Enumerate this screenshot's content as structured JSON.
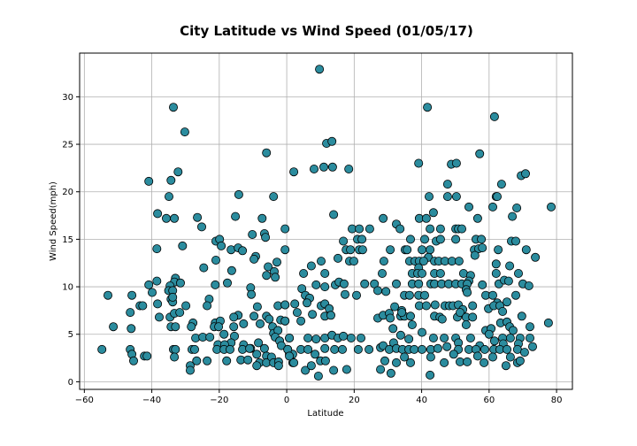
{
  "chart_data": {
    "type": "scatter",
    "title": "City Latitude vs Wind Speed (01/05/17)",
    "xlabel": "Latitude",
    "ylabel": "Wind Speed(mph)",
    "xlim": [
      -61.4,
      84.7
    ],
    "ylim": [
      -0.8,
      34.6
    ],
    "xticks": [
      -60,
      -40,
      -20,
      0,
      20,
      40,
      60,
      80
    ],
    "yticks": [
      0,
      5,
      10,
      15,
      20,
      25,
      30
    ],
    "xtick_labels": [
      "−60",
      "−40",
      "−20",
      "0",
      "20",
      "40",
      "60",
      "80"
    ],
    "ytick_labels": [
      "0",
      "5",
      "10",
      "15",
      "20",
      "25",
      "30"
    ],
    "grid": true,
    "marker_color": "#2b8c9e",
    "marker_edge_color": "#000000",
    "points": [
      [
        -33.6,
        28.9
      ],
      [
        -30.2,
        26.3
      ],
      [
        -6.0,
        24.1
      ],
      [
        -32.2,
        22.1
      ],
      [
        -40.9,
        21.1
      ],
      [
        -34.3,
        21.2
      ],
      [
        -34.9,
        19.5
      ],
      [
        -14.2,
        19.7
      ],
      [
        -3.9,
        19.5
      ],
      [
        -38.3,
        17.7
      ],
      [
        -35.7,
        17.2
      ],
      [
        -33.3,
        17.2
      ],
      [
        -26.5,
        17.3
      ],
      [
        -25.2,
        16.3
      ],
      [
        -15.2,
        17.4
      ],
      [
        -7.3,
        17.2
      ],
      [
        -0.5,
        16.1
      ],
      [
        -10.2,
        15.5
      ],
      [
        -6.6,
        15.6
      ],
      [
        -6.3,
        15.2
      ],
      [
        -30.9,
        14.3
      ],
      [
        -38.5,
        14.0
      ],
      [
        -21,
        14.8
      ],
      [
        -19.9,
        15
      ],
      [
        -19.4,
        14.3
      ],
      [
        -16.5,
        13.9
      ],
      [
        -14.4,
        14.1
      ],
      [
        -13.1,
        13.8
      ],
      [
        -9.2,
        13.2
      ],
      [
        -9.7,
        12.9
      ],
      [
        -0.5,
        13.9
      ],
      [
        -21,
        12.8
      ],
      [
        -24.6,
        12
      ],
      [
        -5.5,
        12.1
      ],
      [
        -2.9,
        12.6
      ],
      [
        -16.3,
        11.7
      ],
      [
        -3.7,
        11.6
      ],
      [
        -3.4,
        11
      ],
      [
        -6,
        11.2
      ],
      [
        -33,
        10.9
      ],
      [
        -33.3,
        10.5
      ],
      [
        -31.5,
        10.4
      ],
      [
        -34.6,
        10.1
      ],
      [
        -38.5,
        10.6
      ],
      [
        -40.9,
        10.2
      ],
      [
        -39.9,
        9.4
      ],
      [
        -35,
        9.6
      ],
      [
        -33.8,
        9.6
      ],
      [
        -34.3,
        8.7
      ],
      [
        -33.8,
        8.4
      ],
      [
        -33.8,
        8.9
      ],
      [
        -21.2,
        10.2
      ],
      [
        -17.6,
        10.4
      ],
      [
        -10.7,
        9.9
      ],
      [
        -10.5,
        9.2
      ],
      [
        -53,
        9.1
      ],
      [
        -45.9,
        9.1
      ],
      [
        -38.3,
        8.2
      ],
      [
        -23,
        8.7
      ],
      [
        -23.6,
        8.0
      ],
      [
        -29.9,
        8.0
      ],
      [
        -43.5,
        8
      ],
      [
        -42.7,
        8
      ],
      [
        -8.7,
        7.9
      ],
      [
        -2.6,
        8
      ],
      [
        -0.5,
        8.1
      ],
      [
        -46.4,
        7.3
      ],
      [
        -37.8,
        6.8
      ],
      [
        -34.6,
        6.8
      ],
      [
        -33.3,
        7.2
      ],
      [
        -31.7,
        7.3
      ],
      [
        -51.4,
        5.8
      ],
      [
        -46.1,
        5.6
      ],
      [
        -34.3,
        5.8
      ],
      [
        -33,
        5.8
      ],
      [
        -27.8,
        6.2
      ],
      [
        -28.3,
        5.8
      ],
      [
        -21.2,
        6.2
      ],
      [
        -19.7,
        6.4
      ],
      [
        -21.5,
        5.8
      ],
      [
        -20.2,
        5.8
      ],
      [
        -14.4,
        7
      ],
      [
        -15.7,
        6.8
      ],
      [
        -15.7,
        5.8
      ],
      [
        -12.8,
        6.1
      ],
      [
        -9.7,
        6.9
      ],
      [
        -7.9,
        6.1
      ],
      [
        -6,
        6.9
      ],
      [
        -5.2,
        6.6
      ],
      [
        -4.2,
        5.8
      ],
      [
        -1.8,
        6.5
      ],
      [
        -0.5,
        6.4
      ],
      [
        -3.9,
        5.1
      ],
      [
        -2.6,
        5.4
      ],
      [
        -3.4,
        4.7
      ],
      [
        -2.1,
        4.3
      ],
      [
        -1.6,
        3.8
      ],
      [
        -18.6,
        5
      ],
      [
        -15.5,
        4.8
      ],
      [
        -16.5,
        4.1
      ],
      [
        -27,
        4.6
      ],
      [
        -24.9,
        4.7
      ],
      [
        -22.8,
        4.7
      ],
      [
        -20.4,
        3.9
      ],
      [
        -18.4,
        3.9
      ],
      [
        -12.8,
        3.9
      ],
      [
        -10.7,
        3.5
      ],
      [
        -8.4,
        4.1
      ],
      [
        -6.6,
        3.5
      ],
      [
        -54.8,
        3.4
      ],
      [
        -46.4,
        3.4
      ],
      [
        -45.9,
        2.9
      ],
      [
        -45.4,
        2.2
      ],
      [
        -42.2,
        2.7
      ],
      [
        -41.4,
        2.7
      ],
      [
        -33.6,
        3.4
      ],
      [
        -33,
        3.4
      ],
      [
        -33.3,
        2.6
      ],
      [
        -28.1,
        3.4
      ],
      [
        -27.3,
        3.4
      ],
      [
        -26.7,
        2.2
      ],
      [
        -28.6,
        1.7
      ],
      [
        -28.6,
        1.2
      ],
      [
        -23.6,
        2.2
      ],
      [
        -20.7,
        3.4
      ],
      [
        -18.6,
        3.4
      ],
      [
        -16.8,
        3.4
      ],
      [
        -17.8,
        2.2
      ],
      [
        -13.6,
        2.3
      ],
      [
        -11.5,
        2.3
      ],
      [
        -13.1,
        3.4
      ],
      [
        -11,
        3.5
      ],
      [
        -8.9,
        2.9
      ],
      [
        -8.1,
        2.0
      ],
      [
        -8.9,
        1.7
      ],
      [
        -6,
        2.7
      ],
      [
        -6,
        2
      ],
      [
        -4.5,
        2.6
      ],
      [
        -3.9,
        2
      ],
      [
        -2.4,
        2.1
      ],
      [
        -2.4,
        1.7
      ],
      [
        0.3,
        3.4
      ],
      [
        0.8,
        2.9
      ],
      [
        0.8,
        4.6
      ],
      [
        1.8,
        2.9
      ],
      [
        1.8,
        2.0
      ],
      [
        9.7,
        32.9
      ],
      [
        41.7,
        28.9
      ],
      [
        61.6,
        27.9
      ],
      [
        11.8,
        25.1
      ],
      [
        13.4,
        25.3
      ],
      [
        57.2,
        24.0
      ],
      [
        2.1,
        22.1
      ],
      [
        8.1,
        22.4
      ],
      [
        11,
        22.6
      ],
      [
        13.6,
        22.6
      ],
      [
        18.4,
        22.4
      ],
      [
        39.1,
        23
      ],
      [
        48.8,
        22.9
      ],
      [
        50.3,
        23
      ],
      [
        69.5,
        21.7
      ],
      [
        70.8,
        21.9
      ],
      [
        47.7,
        20.8
      ],
      [
        63.7,
        20.8
      ],
      [
        42.2,
        19.5
      ],
      [
        47.7,
        19.5
      ],
      [
        50.3,
        19.5
      ],
      [
        62.1,
        19.5
      ],
      [
        62.4,
        19.5
      ],
      [
        54,
        18.4
      ],
      [
        61.1,
        18.4
      ],
      [
        68.2,
        18.3
      ],
      [
        78.4,
        18.4
      ],
      [
        13.9,
        17.6
      ],
      [
        28.6,
        17.2
      ],
      [
        39.3,
        17.2
      ],
      [
        41.4,
        17.2
      ],
      [
        43.5,
        17.8
      ],
      [
        56.6,
        17.2
      ],
      [
        66.9,
        17.4
      ],
      [
        32.5,
        16.6
      ],
      [
        33.6,
        16.1
      ],
      [
        19.4,
        16.1
      ],
      [
        21.5,
        16.1
      ],
      [
        24.6,
        16.1
      ],
      [
        42.5,
        16.1
      ],
      [
        45.6,
        16.1
      ],
      [
        50.1,
        16.1
      ],
      [
        50.9,
        16.1
      ],
      [
        51.9,
        16.1
      ],
      [
        16.8,
        14.8
      ],
      [
        21,
        15
      ],
      [
        22.3,
        15
      ],
      [
        36.7,
        15
      ],
      [
        40.9,
        15
      ],
      [
        44.3,
        14.8
      ],
      [
        45.6,
        15
      ],
      [
        50.1,
        15
      ],
      [
        56.1,
        15
      ],
      [
        57.7,
        15
      ],
      [
        66.6,
        14.8
      ],
      [
        67.9,
        14.8
      ],
      [
        17.6,
        13.9
      ],
      [
        18.9,
        13.9
      ],
      [
        21.5,
        13.9
      ],
      [
        22.5,
        13.9
      ],
      [
        30.7,
        13.9
      ],
      [
        35.1,
        13.9
      ],
      [
        35.7,
        13.9
      ],
      [
        40.1,
        13.9
      ],
      [
        42.5,
        13.9
      ],
      [
        55.6,
        13.9
      ],
      [
        56.9,
        14
      ],
      [
        58,
        14.1
      ],
      [
        62.7,
        13.9
      ],
      [
        71,
        13.9
      ],
      [
        55.8,
        13.3
      ],
      [
        42,
        13.1
      ],
      [
        73.7,
        13.1
      ],
      [
        10.2,
        12.7
      ],
      [
        15.2,
        13
      ],
      [
        18.6,
        12.7
      ],
      [
        19.9,
        12.7
      ],
      [
        28.8,
        12.7
      ],
      [
        36.4,
        12.7
      ],
      [
        38,
        12.7
      ],
      [
        39.3,
        12.7
      ],
      [
        40.6,
        12.7
      ],
      [
        43.8,
        12.7
      ],
      [
        45.1,
        12.7
      ],
      [
        46.9,
        12.7
      ],
      [
        49,
        12.7
      ],
      [
        51.1,
        12.7
      ],
      [
        62.1,
        12.4
      ],
      [
        66.1,
        12.2
      ],
      [
        39.1,
        12
      ],
      [
        5,
        11.4
      ],
      [
        7.3,
        12.2
      ],
      [
        11.3,
        11.4
      ],
      [
        28.3,
        11.4
      ],
      [
        37.2,
        11.4
      ],
      [
        38.8,
        11.4
      ],
      [
        40.1,
        11.4
      ],
      [
        43.8,
        11.4
      ],
      [
        45.6,
        11.4
      ],
      [
        52.4,
        11.4
      ],
      [
        54.5,
        11.2
      ],
      [
        54,
        10.6
      ],
      [
        62.1,
        11.4
      ],
      [
        68.7,
        11.4
      ],
      [
        4.5,
        9.8
      ],
      [
        8.7,
        10.2
      ],
      [
        11.3,
        10
      ],
      [
        14.4,
        10.2
      ],
      [
        15.5,
        10.5
      ],
      [
        17,
        10.3
      ],
      [
        23.1,
        10.3
      ],
      [
        26,
        10.3
      ],
      [
        27,
        9.6
      ],
      [
        29.4,
        9.5
      ],
      [
        32.5,
        10.3
      ],
      [
        37.2,
        10.3
      ],
      [
        39.1,
        10.3
      ],
      [
        42.7,
        10.3
      ],
      [
        43.8,
        10.3
      ],
      [
        45.9,
        10.3
      ],
      [
        48,
        10.3
      ],
      [
        50.1,
        10.3
      ],
      [
        51.9,
        10.3
      ],
      [
        53.5,
        10.3
      ],
      [
        58,
        10.2
      ],
      [
        62.9,
        10.3
      ],
      [
        64.5,
        10.7
      ],
      [
        65.8,
        10.6
      ],
      [
        70,
        10.3
      ],
      [
        71.8,
        10.1
      ],
      [
        5.5,
        9.1
      ],
      [
        6.8,
        8.8
      ],
      [
        6,
        8.3
      ],
      [
        17.3,
        9.2
      ],
      [
        20.7,
        9.1
      ],
      [
        34.9,
        9.1
      ],
      [
        36.4,
        9.1
      ],
      [
        39.1,
        9.1
      ],
      [
        40.9,
        9.1
      ],
      [
        53.2,
        9.7
      ],
      [
        53.5,
        9.4
      ],
      [
        59,
        9.1
      ],
      [
        61.1,
        9.1
      ],
      [
        65.3,
        8.4
      ],
      [
        67.9,
        9.1
      ],
      [
        62.4,
        8.3
      ],
      [
        -0.5,
        8.1
      ],
      [
        2.4,
        8.2
      ],
      [
        10.2,
        8
      ],
      [
        11.3,
        8.2
      ],
      [
        12.6,
        7.7
      ],
      [
        32,
        7.9
      ],
      [
        34.1,
        7.5
      ],
      [
        39.3,
        8
      ],
      [
        41.4,
        8
      ],
      [
        44,
        8.1
      ],
      [
        46.9,
        8
      ],
      [
        48.2,
        8
      ],
      [
        49.3,
        8
      ],
      [
        50.9,
        8.1
      ],
      [
        52.2,
        7.6
      ],
      [
        55.1,
        8
      ],
      [
        59.8,
        7.7
      ],
      [
        61.4,
        8
      ],
      [
        63.2,
        8
      ],
      [
        64,
        7.4
      ],
      [
        3.1,
        7.3
      ],
      [
        7.6,
        7.1
      ],
      [
        11.3,
        6.9
      ],
      [
        13.1,
        7
      ],
      [
        4.2,
        6.4
      ],
      [
        -0.5,
        6.4
      ],
      [
        27,
        6.7
      ],
      [
        28.6,
        7
      ],
      [
        30.4,
        7.2
      ],
      [
        30.7,
        6.7
      ],
      [
        33.8,
        6.9
      ],
      [
        34.9,
        6.9
      ],
      [
        36.7,
        6.9
      ],
      [
        34.1,
        7.3
      ],
      [
        43.8,
        6.9
      ],
      [
        45.4,
        6.8
      ],
      [
        46.1,
        6.6
      ],
      [
        50.6,
        6.8
      ],
      [
        51.4,
        7.3
      ],
      [
        53.2,
        6.8
      ],
      [
        55.1,
        6.8
      ],
      [
        69.7,
        6.9
      ],
      [
        77.6,
        6.2
      ],
      [
        72.1,
        5.8
      ],
      [
        59,
        5.4
      ],
      [
        60.6,
        5.6
      ],
      [
        63.4,
        6.2
      ],
      [
        65.3,
        6.3
      ],
      [
        66.1,
        5.8
      ],
      [
        67.1,
        5.4
      ],
      [
        53.2,
        6
      ],
      [
        37.2,
        6
      ],
      [
        40.1,
        5.2
      ],
      [
        31.5,
        5.6
      ],
      [
        0.8,
        4.6
      ],
      [
        6.3,
        4.6
      ],
      [
        8.7,
        4.5
      ],
      [
        11.3,
        4.6
      ],
      [
        13.4,
        4.9
      ],
      [
        15.2,
        4.6
      ],
      [
        16.8,
        4.8
      ],
      [
        19.1,
        4.6
      ],
      [
        22,
        4.6
      ],
      [
        27.8,
        3.6
      ],
      [
        31.7,
        4.1
      ],
      [
        33.8,
        4.9
      ],
      [
        36.2,
        4.5
      ],
      [
        43.5,
        4.6
      ],
      [
        46.7,
        4.6
      ],
      [
        50.1,
        4.6
      ],
      [
        50.9,
        4.1
      ],
      [
        54.5,
        4.6
      ],
      [
        57.2,
        3.8
      ],
      [
        60,
        5
      ],
      [
        61.6,
        4.3
      ],
      [
        64,
        4.6
      ],
      [
        66.3,
        4.6
      ],
      [
        69.2,
        4.6
      ],
      [
        72.1,
        4.6
      ],
      [
        72.9,
        3.7
      ],
      [
        68.7,
        4
      ],
      [
        64.2,
        4
      ],
      [
        0.3,
        3.4
      ],
      [
        4.2,
        3.4
      ],
      [
        6.3,
        3.4
      ],
      [
        11.3,
        3.5
      ],
      [
        14.2,
        3.4
      ],
      [
        16.5,
        3.4
      ],
      [
        21.2,
        3.4
      ],
      [
        24.4,
        3.4
      ],
      [
        28.6,
        3.8
      ],
      [
        30.4,
        3.4
      ],
      [
        32.5,
        3.5
      ],
      [
        34.3,
        3.4
      ],
      [
        36.2,
        3.4
      ],
      [
        37.8,
        3.4
      ],
      [
        40.1,
        3.4
      ],
      [
        42.7,
        3.4
      ],
      [
        44.8,
        3.5
      ],
      [
        47.5,
        3.7
      ],
      [
        50.9,
        3.4
      ],
      [
        54,
        3.4
      ],
      [
        56.1,
        3.4
      ],
      [
        58.7,
        3.4
      ],
      [
        61.4,
        3.4
      ],
      [
        63.2,
        3.4
      ],
      [
        65.3,
        3.4
      ],
      [
        68.4,
        3.4
      ],
      [
        70.5,
        3.1
      ],
      [
        0.8,
        2.7
      ],
      [
        2.1,
        2
      ],
      [
        5.5,
        1.2
      ],
      [
        7.3,
        1.7
      ],
      [
        8.4,
        2.9
      ],
      [
        10,
        2.2
      ],
      [
        11.5,
        2.2
      ],
      [
        9.4,
        0.6
      ],
      [
        13.9,
        1.2
      ],
      [
        17.8,
        1.3
      ],
      [
        27.8,
        1.3
      ],
      [
        29.1,
        2.2
      ],
      [
        30.9,
        0.9
      ],
      [
        32.5,
        2
      ],
      [
        34.9,
        2.6
      ],
      [
        36.7,
        2
      ],
      [
        42.7,
        2.6
      ],
      [
        42.5,
        0.7
      ],
      [
        46.7,
        2
      ],
      [
        51.4,
        2.1
      ],
      [
        53.5,
        2.1
      ],
      [
        58.5,
        2
      ],
      [
        61.1,
        2.6
      ],
      [
        65,
        1.7
      ],
      [
        66.3,
        2.6
      ],
      [
        68.4,
        2
      ],
      [
        69.2,
        2.2
      ],
      [
        56.6,
        2.7
      ],
      [
        49.5,
        2.9
      ]
    ]
  }
}
